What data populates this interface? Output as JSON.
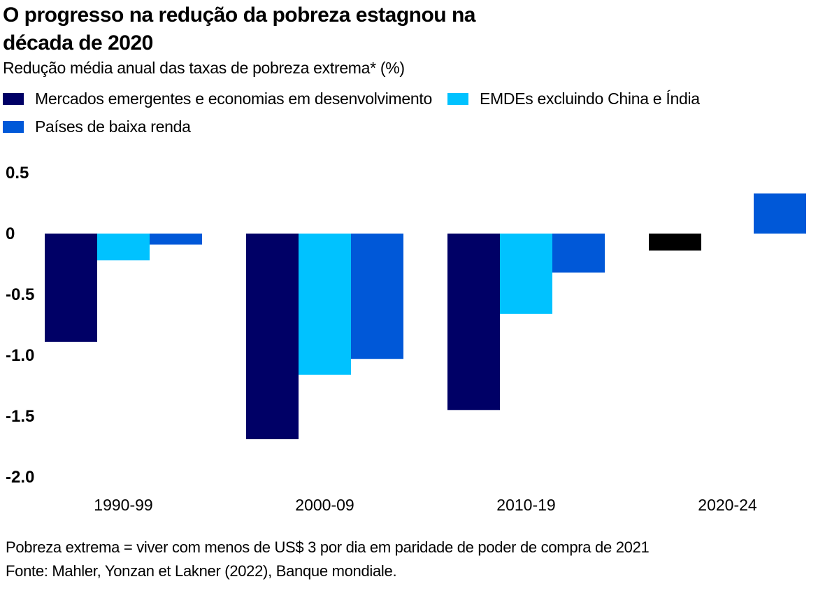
{
  "chart_data": {
    "type": "bar",
    "title": "O progresso na redução da pobreza estagnou na década de 2020",
    "subtitle": "Redução média anual das taxas de pobreza extrema* (%)",
    "categories": [
      "1990-99",
      "2000-09",
      "2010-19",
      "2020-24"
    ],
    "series": [
      {
        "name": "Mercados emergentes e economias em desenvolvimento",
        "color": "#000066",
        "values": [
          -0.89,
          -1.69,
          -1.45,
          -0.14
        ]
      },
      {
        "name": "EMDEs excluindo China e Índia",
        "color": "#00c2ff",
        "values": [
          -0.22,
          -1.16,
          -0.66,
          null
        ]
      },
      {
        "name": "Países de baixa renda",
        "color": "#0058d8",
        "values": [
          -0.09,
          -1.03,
          -0.32,
          0.33
        ]
      }
    ],
    "highlight_colors": {
      "2020-24.0": "#000000"
    },
    "ylim": [
      -2.0,
      0.5
    ],
    "yticks": [
      0.5,
      0,
      -0.5,
      -1.0,
      -1.5,
      -2.0
    ],
    "ytick_labels": [
      "0.5",
      "0",
      "-0.5",
      "-1.0",
      "-1.5",
      "-2.0"
    ],
    "grid": false,
    "legend_position": "top-left"
  },
  "notes": {
    "line1": "Pobreza extrema = viver com menos de US$ 3 por dia em paridade de poder de compra de 2021",
    "line2": "Fonte: Mahler, Yonzan et Lakner (2022), Banque mondiale."
  }
}
